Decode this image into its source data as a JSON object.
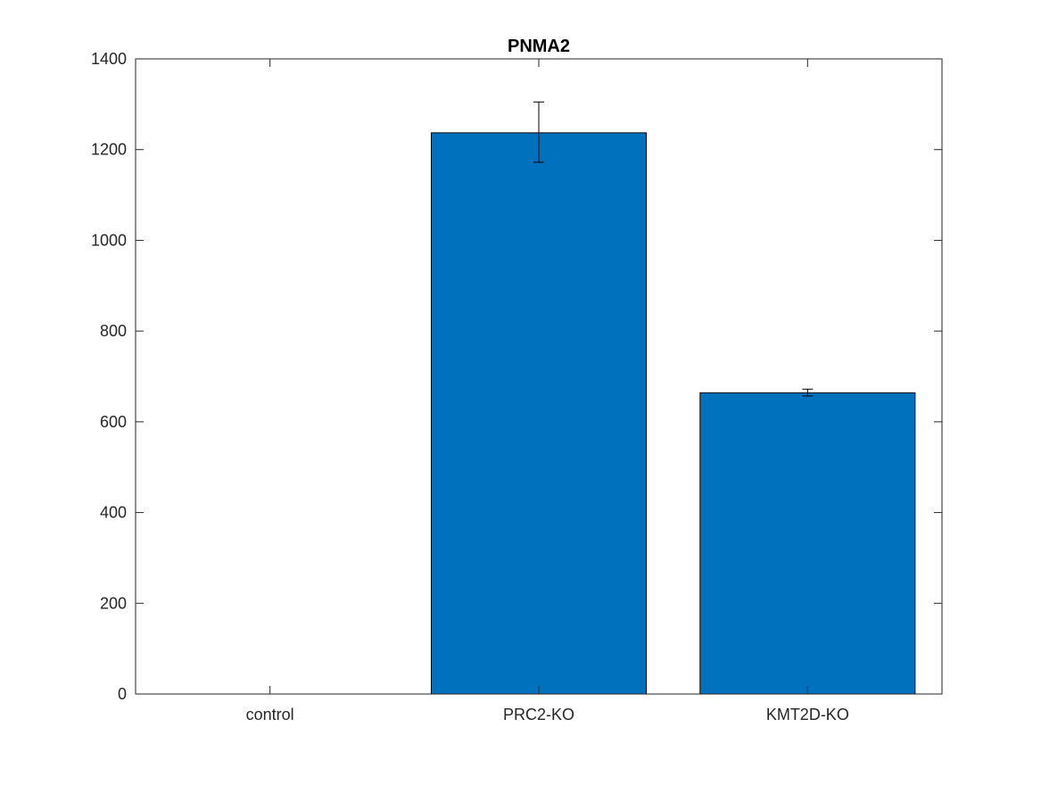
{
  "chart_data": {
    "type": "bar",
    "title": "PNMA2",
    "xlabel": "",
    "ylabel": "",
    "categories": [
      "control",
      "PRC2-KO",
      "KMT2D-KO"
    ],
    "values": [
      0,
      1237,
      664
    ],
    "error_bars": [
      {
        "low": 0,
        "high": 0
      },
      {
        "low": 1172,
        "high": 1305
      },
      {
        "low": 657,
        "high": 672
      }
    ],
    "ylim": [
      0,
      1400
    ],
    "yticks": [
      0,
      200,
      400,
      600,
      800,
      1000,
      1200,
      1400
    ],
    "grid": false,
    "legend": "none",
    "colors": {
      "bar": "#0072bd",
      "bar_edge": "#000000",
      "axis": "#262626",
      "errorbar": "#000000"
    }
  }
}
